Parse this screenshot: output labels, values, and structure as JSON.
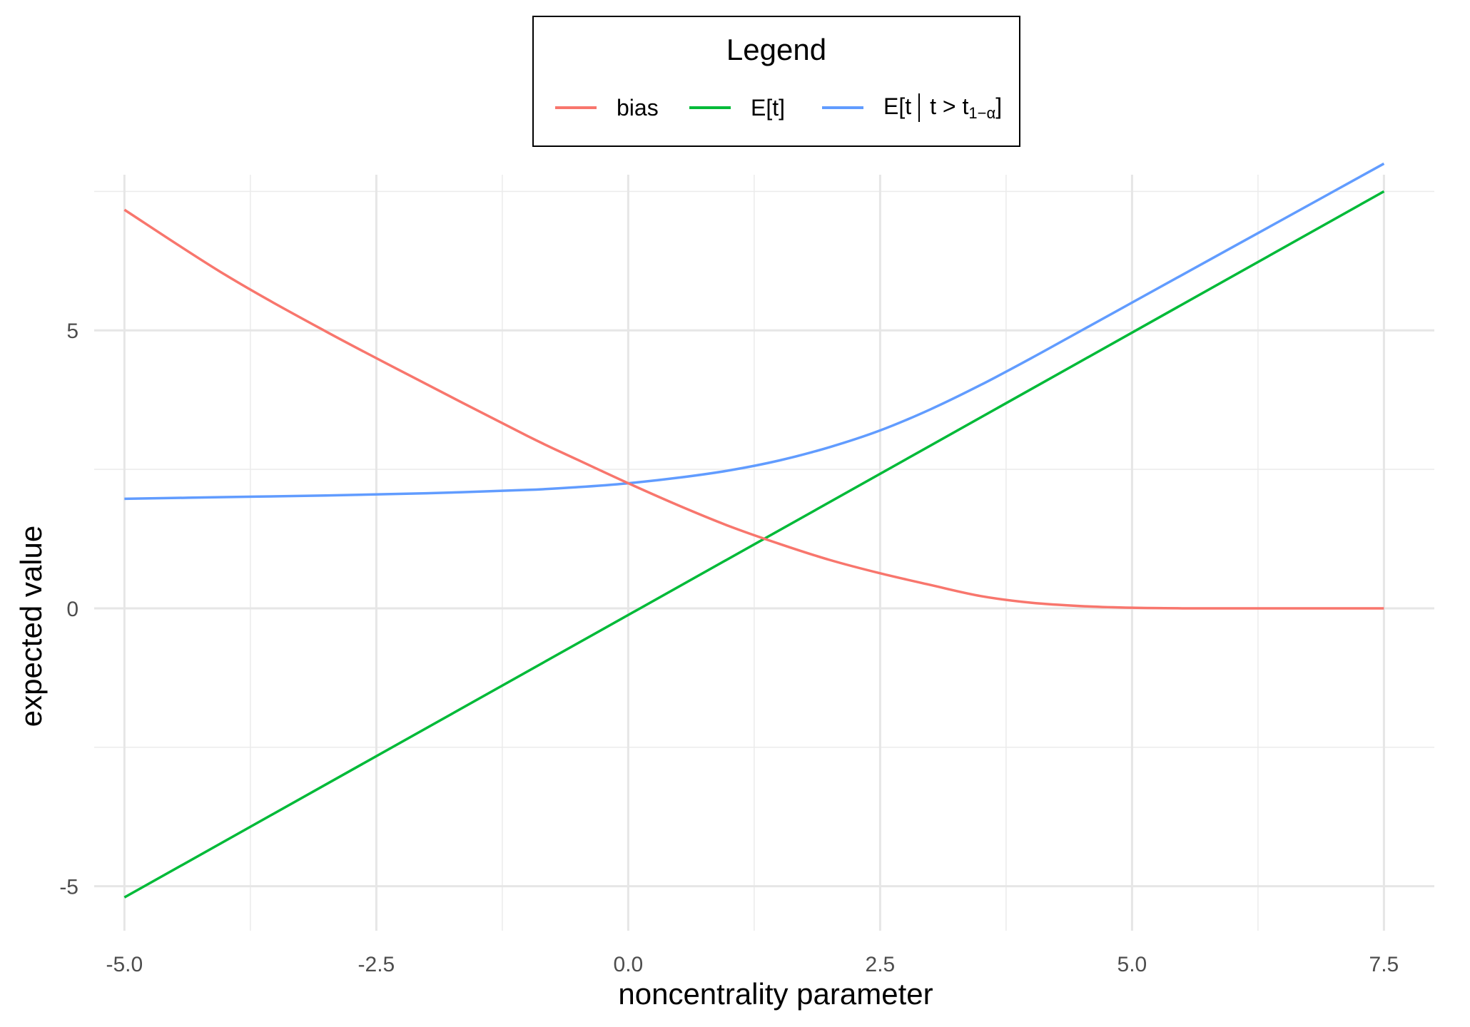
{
  "chart_data": {
    "type": "line",
    "xlabel": "noncentrality parameter",
    "ylabel": "expected value",
    "xlim": [
      -5.3,
      8.0
    ],
    "ylim": [
      -5.8,
      7.8
    ],
    "x_ticks": [
      -5.0,
      -2.5,
      0.0,
      2.5,
      5.0,
      7.5
    ],
    "x_tick_labels": [
      "-5.0",
      "-2.5",
      "0.0",
      "2.5",
      "5.0",
      "7.5"
    ],
    "y_ticks": [
      -5,
      0,
      5
    ],
    "y_tick_labels": [
      "-5",
      "0",
      "5"
    ],
    "grid": true,
    "legend": {
      "title": "Legend",
      "position": "top",
      "entries": [
        {
          "key": "bias",
          "label": "bias"
        },
        {
          "key": "et",
          "label": "E[t]"
        },
        {
          "key": "etc",
          "label_main": "E[t",
          "label_cond": "t > t",
          "label_sub": "1−α",
          "label_end": "]"
        }
      ]
    },
    "colors": {
      "bias": "#F8766D",
      "et": "#00BA38",
      "etc": "#619CFF"
    },
    "series": [
      {
        "key": "etc",
        "x": [
          -5.0,
          -4.0,
          -3.0,
          -2.0,
          -1.0,
          -0.5,
          0.0,
          0.5,
          1.0,
          1.5,
          2.0,
          2.5,
          3.0,
          3.5,
          4.0,
          4.5,
          5.0,
          5.5,
          6.0,
          6.5,
          7.0,
          7.5
        ],
        "values": [
          1.97,
          2.0,
          2.03,
          2.07,
          2.13,
          2.18,
          2.25,
          2.35,
          2.48,
          2.66,
          2.9,
          3.2,
          3.58,
          4.02,
          4.5,
          5.0,
          5.5,
          6.0,
          6.5,
          7.0,
          7.5,
          8.0
        ]
      },
      {
        "key": "et",
        "x": [
          -5.0,
          7.5
        ],
        "values": [
          -5.2,
          7.5
        ]
      },
      {
        "key": "bias",
        "x": [
          -5.0,
          -4.0,
          -3.0,
          -2.0,
          -1.0,
          -0.5,
          0.0,
          0.5,
          1.0,
          1.5,
          2.0,
          2.5,
          3.0,
          3.5,
          4.0,
          4.5,
          5.0,
          5.5,
          6.0,
          6.5,
          7.0,
          7.5
        ],
        "values": [
          7.17,
          6.0,
          4.98,
          4.03,
          3.1,
          2.67,
          2.25,
          1.85,
          1.48,
          1.16,
          0.87,
          0.63,
          0.42,
          0.22,
          0.1,
          0.04,
          0.01,
          0.0,
          0.0,
          0.0,
          0.0,
          0.0
        ]
      }
    ]
  }
}
